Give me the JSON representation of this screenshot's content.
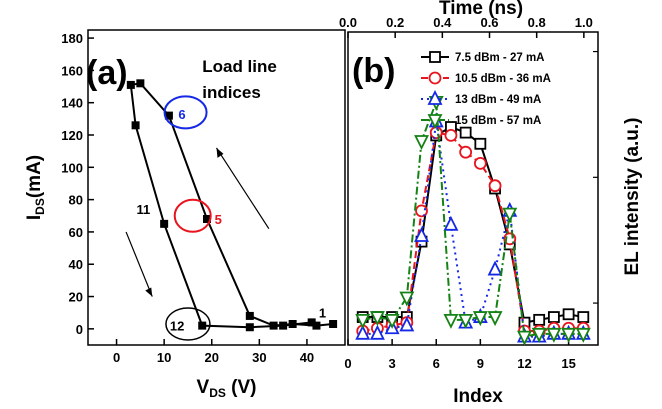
{
  "chart_data": [
    {
      "panel_label": "(a)",
      "type": "line",
      "title": "",
      "xlabel_main": "V",
      "xlabel_sub": "DS",
      "xlabel_unit": " (V)",
      "ylabel_main": "I",
      "ylabel_sub": "DS",
      "ylabel_unit": "(mA)",
      "xlim": [
        -6,
        48
      ],
      "ylim": [
        -10,
        185
      ],
      "xticks": [
        0,
        10,
        20,
        30,
        40
      ],
      "yticks": [
        0,
        20,
        40,
        60,
        80,
        100,
        120,
        140,
        160,
        180
      ],
      "grid": false,
      "series": [
        {
          "color": "#000000",
          "marker": "filled-square",
          "x": [
            45.5,
            42,
            37,
            33,
            28,
            19,
            11,
            5,
            3,
            4,
            10,
            18,
            28,
            35,
            41
          ],
          "y": [
            3,
            2,
            3,
            2,
            8,
            68,
            132,
            152,
            151,
            126,
            65,
            2,
            1,
            2,
            4
          ]
        }
      ],
      "annotations": {
        "text": "Load line",
        "text2": "indices",
        "label_1": "1",
        "label_5": "5",
        "label_6": "6",
        "label_11": "11",
        "label_12": "12"
      }
    },
    {
      "panel_label": "(b)",
      "type": "line",
      "xlabel": "Index",
      "ylabel": "EL intensity (a.u.)",
      "top_xlabel": "Time (ns)",
      "xlim": [
        0,
        17
      ],
      "ylim": [
        0,
        1.12
      ],
      "xticks": [
        0,
        3,
        6,
        9,
        12,
        15
      ],
      "top_xlim": [
        0.0,
        1.06
      ],
      "top_xticks": [
        "0.0",
        "0.2",
        "0.4",
        "0.6",
        "0.8",
        "1.0"
      ],
      "top_xtick_values": [
        0.0,
        0.2,
        0.4,
        0.6,
        0.8,
        1.0
      ],
      "grid": false,
      "legend_position": "top-right",
      "series": [
        {
          "name": "7.5 dBm - 27 mA",
          "color": "#000000",
          "dash": "solid",
          "marker": "square",
          "x": [
            1,
            2,
            3,
            4,
            5,
            6,
            7,
            8,
            9,
            10,
            11,
            12,
            13,
            14,
            15,
            16
          ],
          "y": [
            0.1,
            0.1,
            0.1,
            0.1,
            0.37,
            0.75,
            0.78,
            0.76,
            0.72,
            0.56,
            0.36,
            0.08,
            0.09,
            0.1,
            0.11,
            0.1
          ]
        },
        {
          "name": "10.5 dBm - 36 mA",
          "color": "#e8141e",
          "dash": "dash",
          "marker": "circle",
          "x": [
            1,
            2,
            3,
            4,
            5,
            6,
            7,
            8,
            9,
            10,
            11,
            12,
            13,
            14,
            15,
            16
          ],
          "y": [
            0.05,
            0.06,
            0.07,
            0.08,
            0.48,
            0.76,
            0.75,
            0.69,
            0.65,
            0.57,
            0.38,
            0.05,
            0.05,
            0.06,
            0.06,
            0.06
          ]
        },
        {
          "name": "13 dBm - 49 mA",
          "color": "#1428e6",
          "dash": "dot",
          "marker": "triangle-up",
          "x": [
            1,
            2,
            3,
            4,
            5,
            6,
            7,
            8,
            9,
            10,
            11,
            12,
            13,
            14,
            15,
            16
          ],
          "y": [
            0.04,
            0.04,
            0.06,
            0.07,
            0.39,
            0.8,
            0.43,
            0.08,
            0.1,
            0.27,
            0.48,
            0.03,
            0.03,
            0.04,
            0.04,
            0.04
          ]
        },
        {
          "name": "15 dBm - 57 mA",
          "color": "#148214",
          "dash": "dashdot",
          "marker": "triangle-down",
          "x": [
            1,
            2,
            3,
            4,
            5,
            6,
            7,
            8,
            9,
            10,
            11,
            12,
            13,
            14,
            15,
            16
          ],
          "y": [
            0.09,
            0.1,
            0.09,
            0.17,
            0.73,
            0.87,
            0.09,
            0.09,
            0.1,
            0.1,
            0.47,
            0.03,
            0.04,
            0.04,
            0.04,
            0.04
          ]
        }
      ]
    }
  ]
}
